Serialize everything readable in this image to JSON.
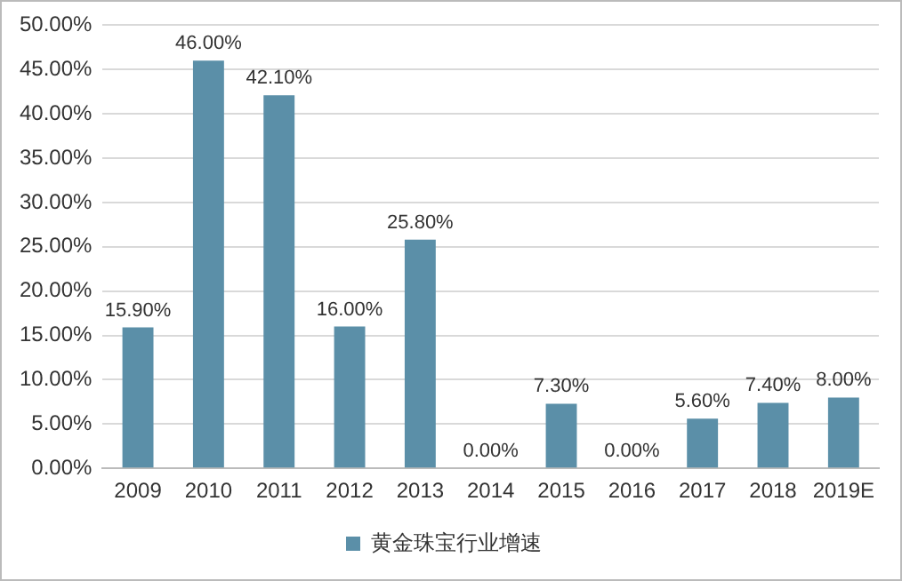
{
  "chart_data": {
    "type": "bar",
    "categories": [
      "2009",
      "2010",
      "2011",
      "2012",
      "2013",
      "2014",
      "2015",
      "2016",
      "2017",
      "2018",
      "2019E"
    ],
    "series": [
      {
        "name": "黄金珠宝行业增速",
        "color": "#5b8fa8",
        "values": [
          15.9,
          46.0,
          42.1,
          16.0,
          25.8,
          0,
          7.3,
          0,
          5.6,
          7.4,
          8.0
        ],
        "value_labels": [
          "15.90%",
          "46.00%",
          "42.10%",
          "16.00%",
          "25.80%",
          "0.00%",
          "7.30%",
          "0.00%",
          "5.60%",
          "7.40%",
          "8.00%"
        ]
      }
    ],
    "ylim": [
      0,
      50
    ],
    "yticks": [
      {
        "value": 0,
        "label": "0.00%"
      },
      {
        "value": 5,
        "label": "5.00%"
      },
      {
        "value": 10,
        "label": "10.00%"
      },
      {
        "value": 15,
        "label": "15.00%"
      },
      {
        "value": 20,
        "label": "20.00%"
      },
      {
        "value": 25,
        "label": "25.00%"
      },
      {
        "value": 30,
        "label": "30.00%"
      },
      {
        "value": 35,
        "label": "35.00%"
      },
      {
        "value": 40,
        "label": "40.00%"
      },
      {
        "value": 45,
        "label": "45.00%"
      },
      {
        "value": 50,
        "label": "50.00%"
      }
    ],
    "grid": "y",
    "legend": "bottom"
  }
}
